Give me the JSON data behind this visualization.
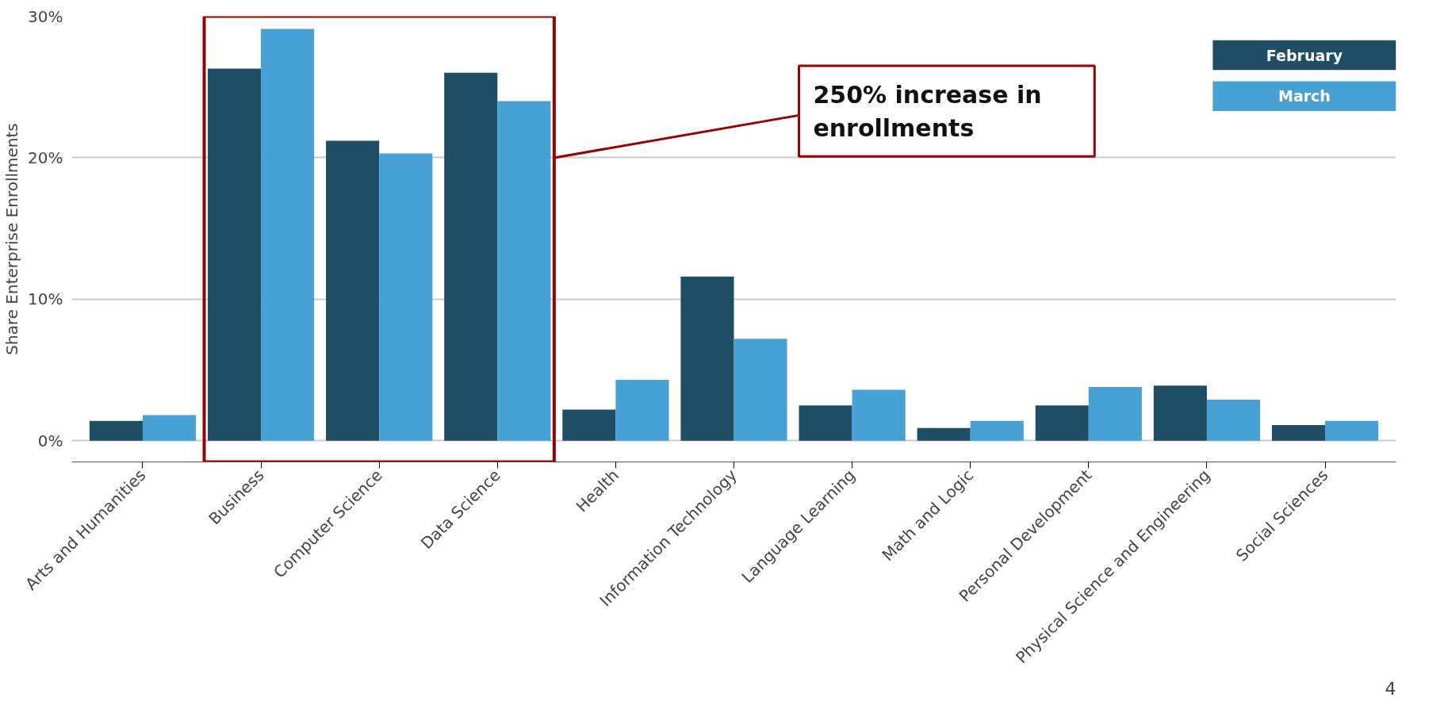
{
  "chart_data": {
    "type": "bar",
    "ylabel": "Share Enterprise Enrollments",
    "categories": [
      "Arts and Humanities",
      "Business",
      "Computer Science",
      "Data Science",
      "Health",
      "Information Technology",
      "Language Learning",
      "Math and Logic",
      "Personal Development",
      "Physical Science and Engineering",
      "Social Sciences"
    ],
    "series": [
      {
        "name": "February",
        "color": "#1f4e64",
        "values": [
          1.4,
          26.3,
          21.2,
          26.0,
          2.2,
          11.6,
          2.5,
          0.9,
          2.5,
          3.9,
          1.1
        ]
      },
      {
        "name": "March",
        "color": "#47a1d4",
        "values": [
          1.8,
          29.1,
          20.3,
          24.0,
          4.3,
          7.2,
          3.6,
          1.4,
          3.8,
          2.9,
          1.4
        ]
      }
    ],
    "ylim": [
      -1.5,
      30
    ],
    "yticks": [
      {
        "value": 0,
        "label": "0%"
      },
      {
        "value": 10,
        "label": "10%"
      },
      {
        "value": 20,
        "label": "20%"
      },
      {
        "value": 30,
        "label": "30%"
      }
    ],
    "grid": "y",
    "legend": "top right",
    "annotations": [
      "250% increase in enrollments",
      "4"
    ]
  }
}
